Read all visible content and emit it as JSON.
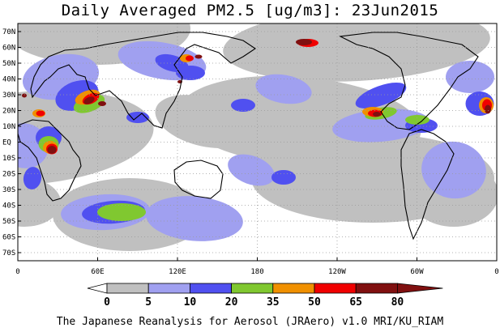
{
  "title": "Daily Averaged PM2.5 [ug/m3]: 23Jun2015",
  "footer": "The Japanese Reanalysis for Aerosol (JRAero) v1.0 MRI/KU_RIAM",
  "map": {
    "lat_labels": [
      "70N",
      "60N",
      "50N",
      "40N",
      "30N",
      "20N",
      "10N",
      "EQ",
      "10S",
      "20S",
      "30S",
      "40S",
      "50S",
      "60S",
      "70S"
    ],
    "lon_labels": [
      "0",
      "60E",
      "120E",
      "180",
      "120W",
      "60W",
      "0"
    ],
    "grid": "dotted"
  },
  "colorbar": {
    "ticks": [
      "0",
      "5",
      "10",
      "20",
      "35",
      "50",
      "65",
      "80"
    ],
    "colors": [
      "#ffffff",
      "#c0c0c0",
      "#a0a0f0",
      "#5050f0",
      "#80c830",
      "#f09000",
      "#f00000",
      "#801010"
    ]
  },
  "fields": {
    "grey": [
      [
        40,
        170,
        300,
        115,
        "-5"
      ],
      [
        370,
        150,
        300,
        110,
        "5"
      ],
      [
        120,
        35,
        230,
        90,
        "0"
      ],
      [
        440,
        55,
        330,
        90,
        "-3"
      ],
      [
        460,
        220,
        300,
        110,
        "0"
      ],
      [
        160,
        265,
        190,
        90,
        "0"
      ],
      [
        250,
        150,
        120,
        60,
        "15"
      ],
      [
        30,
        250,
        90,
        60,
        "0"
      ],
      [
        560,
        240,
        110,
        80,
        "0"
      ]
    ],
    "lightblue": [
      [
        75,
        95,
        95,
        55,
        "-10"
      ],
      [
        200,
        75,
        110,
        45,
        "10"
      ],
      [
        130,
        262,
        110,
        44,
        "-3"
      ],
      [
        310,
        210,
        60,
        35,
        "20"
      ],
      [
        470,
        155,
        120,
        40,
        "-5"
      ],
      [
        560,
        210,
        80,
        70,
        "10"
      ],
      [
        240,
        270,
        120,
        55,
        "5"
      ],
      [
        30,
        180,
        60,
        55,
        "20"
      ],
      [
        350,
        110,
        70,
        35,
        "10"
      ],
      [
        580,
        95,
        60,
        40,
        "0"
      ]
    ],
    "blue": [
      [
        60,
        170,
        32,
        28,
        "0"
      ],
      [
        95,
        118,
        55,
        35,
        "-20"
      ],
      [
        212,
        78,
        42,
        20,
        "15"
      ],
      [
        235,
        90,
        36,
        18,
        "0"
      ],
      [
        140,
        262,
        78,
        28,
        "-4"
      ],
      [
        350,
        219,
        30,
        18,
        "0"
      ],
      [
        470,
        118,
        66,
        24,
        "-20"
      ],
      [
        592,
        128,
        35,
        30,
        "0"
      ],
      [
        40,
        220,
        22,
        28,
        "10"
      ],
      [
        300,
        130,
        30,
        16,
        "0"
      ],
      [
        520,
        155,
        40,
        18,
        "0"
      ],
      [
        170,
        145,
        28,
        14,
        "0"
      ]
    ],
    "green": [
      [
        150,
        262,
        60,
        22,
        "0"
      ],
      [
        60,
        178,
        25,
        20,
        "0"
      ],
      [
        110,
        128,
        40,
        20,
        "-20"
      ],
      [
        470,
        140,
        40,
        14,
        "-10"
      ],
      [
        515,
        148,
        30,
        12,
        "0"
      ]
    ],
    "orange": [
      [
        62,
        182,
        18,
        16,
        "0"
      ],
      [
        108,
        120,
        32,
        16,
        "-20"
      ],
      [
        230,
        72,
        16,
        10,
        "0"
      ],
      [
        460,
        138,
        26,
        12,
        "0"
      ],
      [
        600,
        130,
        18,
        20,
        "0"
      ],
      [
        48,
        140,
        16,
        10,
        "0"
      ]
    ],
    "red": [
      [
        64,
        184,
        14,
        13,
        "0"
      ],
      [
        112,
        122,
        22,
        12,
        "-25"
      ],
      [
        234,
        72,
        10,
        7,
        "0"
      ],
      [
        463,
        140,
        18,
        9,
        "0"
      ],
      [
        601,
        130,
        12,
        15,
        "0"
      ],
      [
        380,
        53,
        26,
        10,
        "0"
      ],
      [
        50,
        140,
        11,
        7,
        "0"
      ]
    ],
    "dark": [
      [
        64,
        185,
        11,
        10,
        "0"
      ],
      [
        110,
        124,
        14,
        8,
        "-25"
      ],
      [
        126,
        128,
        10,
        6,
        "0"
      ],
      [
        375,
        52,
        20,
        8,
        "0"
      ],
      [
        245,
        70,
        9,
        5,
        "0"
      ],
      [
        602,
        135,
        8,
        11,
        "0"
      ],
      [
        465,
        141,
        10,
        6,
        "0"
      ],
      [
        30,
        118,
        6,
        5,
        "0"
      ],
      [
        222,
        101,
        6,
        4,
        "0"
      ]
    ]
  },
  "land": [
    "M22,155 L40,148 L60,150 L75,165 L85,175 L90,185 L98,195 L100,205 L92,220 L85,235 L75,245 L65,248 L58,240 L55,225 L50,210 L45,195 L35,182 L25,175 L22,165 Z",
    "M40,120 L55,100 L62,95 L72,85 L85,80 L95,92 L105,95 L110,110 L118,118 L135,112 L150,125 L158,140 L165,148 L175,140 L190,155 L200,158 L205,140 L215,125 L222,110 L225,95 L215,80 L230,60 L240,55 L255,60 L270,65 L285,78 L300,70 L315,60 L300,50 L280,45 L250,40 L220,40 L190,45 L160,50 L130,55 L105,60 L80,62 L60,70 L50,80 L42,95 L38,110 Z",
    "M215,210 L230,200 L248,198 L268,205 L275,215 L272,235 L260,245 L240,242 L225,235 L216,225 Z",
    "M420,45 L440,55 L460,60 L480,70 L495,85 L500,105 L495,120 L480,128 L470,138 L478,150 L490,158 L505,160 L520,150 L540,130 L555,110 L565,95 L580,85 L590,70 L570,55 L545,50 L520,45 L490,40 L460,40 Z",
    "M505,165 L520,160 L535,165 L550,175 L560,190 L552,210 L540,230 L528,250 L520,275 L510,295 L505,280 L500,255 L498,230 L495,205 L495,185 Z"
  ]
}
